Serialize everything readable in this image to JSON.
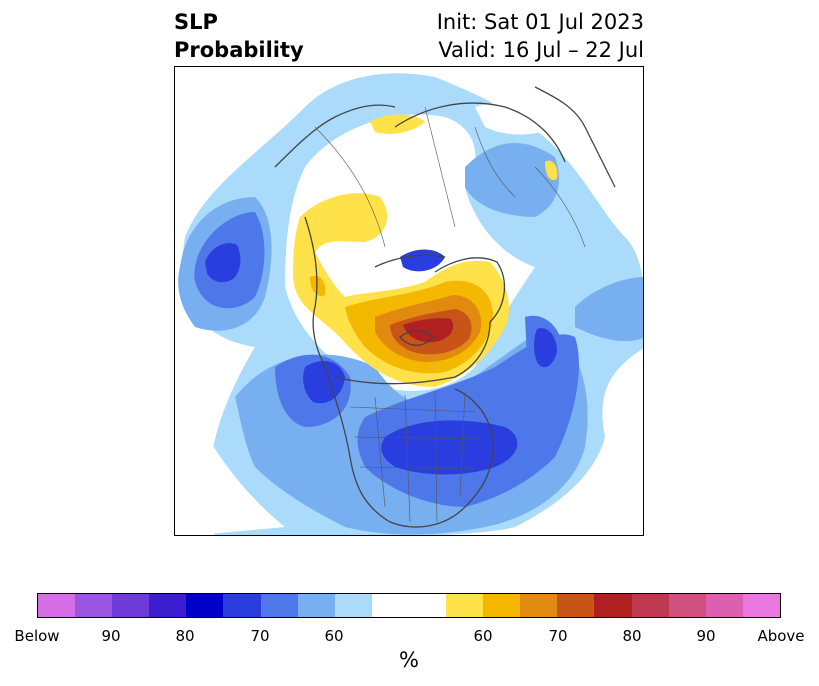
{
  "title": {
    "variable": "SLP",
    "type": "Probability",
    "init": "Init: Sat 01 Jul 2023",
    "valid": "Valid: 16 Jul – 22 Jul"
  },
  "colorbar": {
    "unit": "%",
    "ticks": [
      "Below",
      "90",
      "80",
      "70",
      "60",
      "60",
      "70",
      "80",
      "90",
      "Above"
    ],
    "colors": [
      "#d66ee8",
      "#9c55e0",
      "#6e3ad8",
      "#3c1ed0",
      "#0000c8",
      "#2a3ee0",
      "#4e78ea",
      "#78aff0",
      "#aadbfa",
      "#ffffff",
      "#ffffff",
      "#ffe24a",
      "#f5b800",
      "#e08a10",
      "#c85418",
      "#b02020",
      "#c03850",
      "#d05080",
      "#dc60b0",
      "#e878e0"
    ]
  },
  "legend_colors": {
    "below_60": "#aadbfa",
    "below_70": "#78aff0",
    "below_80": "#4e78ea",
    "below_90": "#2a3ee0",
    "above_60": "#ffe24a",
    "above_70": "#f5b800",
    "above_80": "#e08a10",
    "above_90": "#c85418",
    "above_max": "#b02020"
  }
}
